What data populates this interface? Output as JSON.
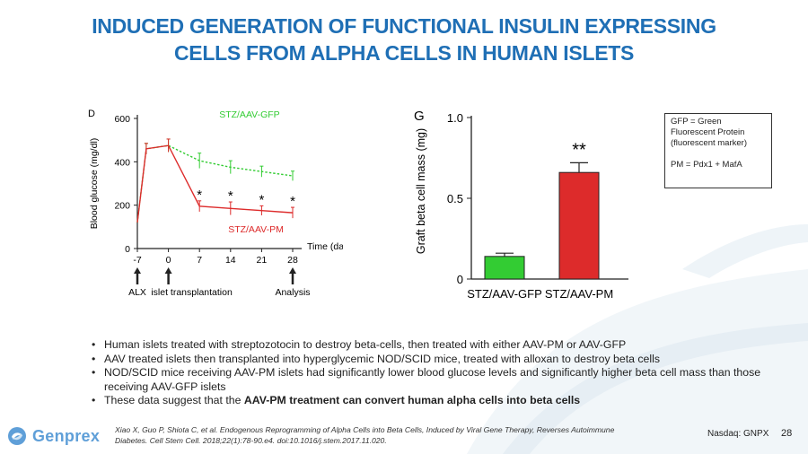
{
  "slide": {
    "title_line1": "INDUCED GENERATION OF FUNCTIONAL INSULIN EXPRESSING",
    "title_line2": "CELLS FROM ALPHA CELLS IN HUMAN ISLETS",
    "legend_box": {
      "line1": "GFP = Green",
      "line2": "Fluorescent Protein",
      "line3": "(fluorescent marker)",
      "line4": "PM = Pdx1 + MafA"
    },
    "bullets": [
      "Human islets treated with streptozotocin to destroy beta-cells, then treated with either AAV-PM or AAV-GFP",
      "AAV treated islets then transplanted into hyperglycemic NOD/SCID mice, treated with alloxan to destroy beta cells",
      "NOD/SCID mice receiving AAV-PM islets had significantly lower blood glucose levels and significantly higher beta cell mass than those receiving AAV-GFP islets"
    ],
    "bullet4_prefix": "These data suggest that the ",
    "bullet4_bold": "AAV-PM treatment can convert human alpha cells into beta cells",
    "citation_line1": "Xiao X, Guo P, Shiota C, et al. Endogenous Reprogramming of Alpha Cells into Beta Cells, Induced by Viral Gene Therapy, Reverses Autoimmune",
    "citation_line2": "Diabetes. Cell Stem Cell. 2018;22(1):78-90.e4. doi:10.1016/j.stem.2017.11.020.",
    "logo_text": "Genprex",
    "ticker": "Nasdaq: GNPX",
    "page_number": "28",
    "colors": {
      "title": "#1f6fb5",
      "gfp": "#33cc33",
      "pm": "#dd2b2b",
      "logo": "#5f9fd8"
    }
  },
  "chart_data": [
    {
      "type": "line",
      "panel_label": "D",
      "ylabel": "Blood glucose (mg/dl)",
      "xlabel": "Time (day)",
      "x": [
        -7,
        -5,
        0,
        7,
        14,
        21,
        28
      ],
      "x_ticks": [
        -7,
        0,
        7,
        14,
        21,
        28
      ],
      "y_ticks": [
        0,
        200,
        400,
        600
      ],
      "xlim": [
        -7,
        28
      ],
      "ylim": [
        0,
        600
      ],
      "series": [
        {
          "name": "STZ/AAV-GFP",
          "style": "dashed",
          "color": "#33cc33",
          "values": [
            120,
            460,
            475,
            405,
            375,
            355,
            335
          ],
          "errors": [
            0,
            25,
            30,
            35,
            30,
            25,
            22
          ]
        },
        {
          "name": "STZ/AAV-PM",
          "style": "solid",
          "color": "#dd2b2b",
          "values": [
            120,
            460,
            475,
            195,
            185,
            175,
            165
          ],
          "errors": [
            0,
            25,
            30,
            25,
            30,
            22,
            25
          ]
        }
      ],
      "significance": [
        {
          "x": 7,
          "label": "*"
        },
        {
          "x": 14,
          "label": "*"
        },
        {
          "x": 21,
          "label": "*"
        },
        {
          "x": 28,
          "label": "*"
        }
      ],
      "events": [
        {
          "x": -7,
          "label": "ALX"
        },
        {
          "x": 0,
          "label": "islet transplantation"
        },
        {
          "x": 28,
          "label": "Analysis"
        }
      ]
    },
    {
      "type": "bar",
      "panel_label": "G",
      "ylabel": "Graft beta cell mass (mg)",
      "categories": [
        "STZ/AAV-GFP",
        "STZ/AAV-PM"
      ],
      "values": [
        0.14,
        0.66
      ],
      "errors": [
        0.02,
        0.06
      ],
      "colors": [
        "#33cc33",
        "#dd2b2b"
      ],
      "y_ticks": [
        0,
        0.5,
        1.0
      ],
      "y_tick_labels": [
        "0",
        "0.5",
        "1.0"
      ],
      "ylim": [
        0,
        1.0
      ],
      "significance": [
        {
          "category": "STZ/AAV-PM",
          "label": "**"
        }
      ]
    }
  ]
}
